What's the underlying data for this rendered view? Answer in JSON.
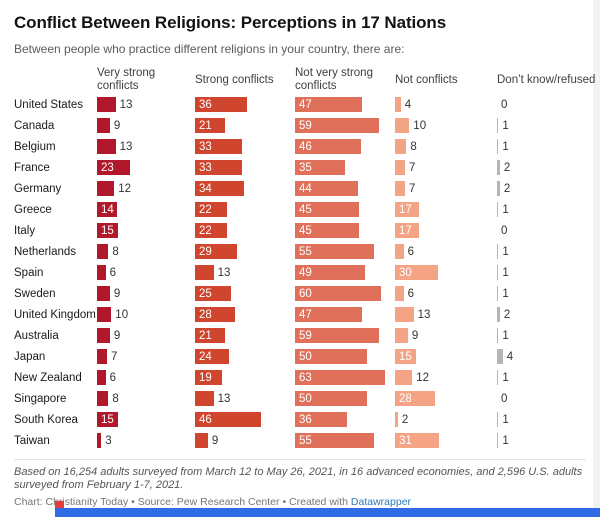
{
  "header": {
    "title": "Conflict Between Religions: Perceptions in 17 Nations",
    "subtitle": "Between people who practice different religions in your country, there are:"
  },
  "chart_data": {
    "type": "bar",
    "orientation": "horizontal",
    "unit": "%",
    "value_range": [
      0,
      70
    ],
    "columns": [
      "Very strong conflicts",
      "Strong conflicts",
      "Not very strong conflicts",
      "Not conflicts",
      "Don’t know/refused"
    ],
    "colors": [
      "#b2182b",
      "#d0452e",
      "#e1705b",
      "#f4a385",
      "#b5b5b5"
    ],
    "rows": [
      {
        "country": "United States",
        "values": [
          13,
          36,
          47,
          4,
          0
        ]
      },
      {
        "country": "Canada",
        "values": [
          9,
          21,
          59,
          10,
          1
        ]
      },
      {
        "country": "Belgium",
        "values": [
          13,
          33,
          46,
          8,
          1
        ]
      },
      {
        "country": "France",
        "values": [
          23,
          33,
          35,
          7,
          2
        ]
      },
      {
        "country": "Germany",
        "values": [
          12,
          34,
          44,
          7,
          2
        ]
      },
      {
        "country": "Greece",
        "values": [
          14,
          22,
          45,
          17,
          1
        ]
      },
      {
        "country": "Italy",
        "values": [
          15,
          22,
          45,
          17,
          0
        ]
      },
      {
        "country": "Netherlands",
        "values": [
          8,
          29,
          55,
          6,
          1
        ]
      },
      {
        "country": "Spain",
        "values": [
          6,
          13,
          49,
          30,
          1
        ]
      },
      {
        "country": "Sweden",
        "values": [
          9,
          25,
          60,
          6,
          1
        ]
      },
      {
        "country": "United Kingdom",
        "values": [
          10,
          28,
          47,
          13,
          2
        ]
      },
      {
        "country": "Australia",
        "values": [
          9,
          21,
          59,
          9,
          1
        ]
      },
      {
        "country": "Japan",
        "values": [
          7,
          24,
          50,
          15,
          4
        ]
      },
      {
        "country": "New Zealand",
        "values": [
          6,
          19,
          63,
          12,
          1
        ]
      },
      {
        "country": "Singapore",
        "values": [
          8,
          13,
          50,
          28,
          0
        ]
      },
      {
        "country": "South Korea",
        "values": [
          15,
          46,
          36,
          2,
          1
        ]
      },
      {
        "country": "Taiwan",
        "values": [
          3,
          9,
          55,
          31,
          1
        ]
      }
    ]
  },
  "footer": {
    "note": "Based on 16,254 adults surveyed from March 12 to May 26, 2021, in 16 advanced economies, and 2,596 U.S. adults surveyed from February 1-7, 2021.",
    "credit_chart": "Chart: Christianity Today",
    "credit_source": "Source: Pew Research Center",
    "credit_created": "Created with",
    "credit_link": "Datawrapper",
    "separator": " • "
  },
  "page": {
    "banner_color": "#2f6be4",
    "banner_accent_color": "#e23c3c"
  }
}
